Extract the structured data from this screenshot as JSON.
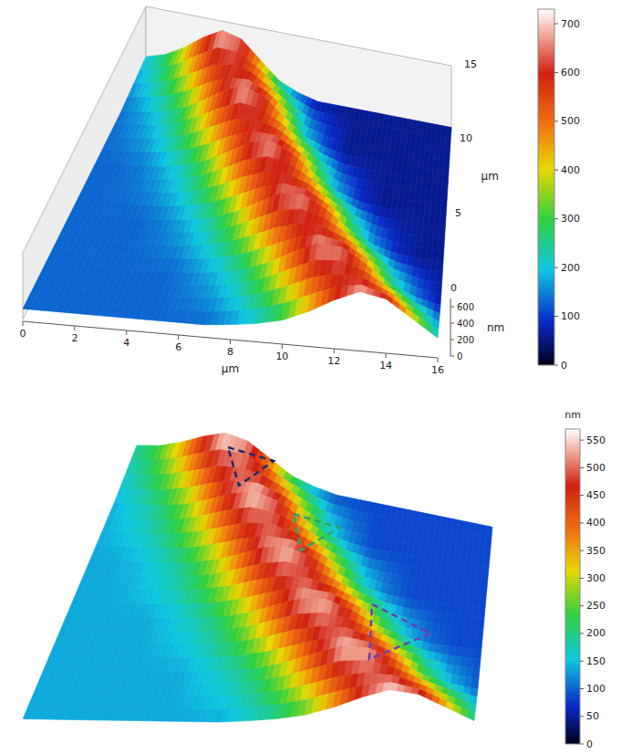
{
  "chart_data": [
    {
      "type": "surface",
      "x": [
        0,
        1,
        2,
        3,
        4,
        5,
        6,
        7,
        8,
        9,
        10,
        11,
        12,
        13,
        14,
        15,
        16
      ],
      "y": [
        0,
        3,
        6,
        9,
        12,
        15
      ],
      "z": [
        [
          130,
          130,
          130,
          130,
          130,
          130,
          130,
          130,
          160,
          200,
          270,
          400,
          570,
          700,
          640,
          430,
          220
        ],
        [
          130,
          130,
          130,
          130,
          130,
          130,
          155,
          192,
          256,
          374,
          536,
          674,
          652,
          472,
          262,
          140,
          72
        ],
        [
          130,
          130,
          130,
          130,
          148,
          184,
          242,
          348,
          502,
          648,
          664,
          514,
          304,
          160,
          84,
          60,
          60
        ],
        [
          130,
          130,
          142,
          176,
          228,
          322,
          468,
          622,
          676,
          556,
          346,
          180,
          96,
          60,
          60,
          60,
          60
        ],
        [
          136,
          168,
          214,
          296,
          434,
          596,
          688,
          598,
          388,
          200,
          108,
          60,
          60,
          60,
          60,
          60,
          60
        ],
        [
          200,
          270,
          400,
          570,
          700,
          640,
          430,
          220,
          120,
          60,
          60,
          60,
          60,
          60,
          60,
          60,
          60
        ]
      ],
      "xlim": [
        0,
        16
      ],
      "xticks": [
        0,
        2,
        4,
        6,
        8,
        10,
        12,
        14,
        16
      ],
      "ylim": [
        0,
        15
      ],
      "yticks": [
        0,
        5,
        10,
        15
      ],
      "zlim": [
        0,
        700
      ],
      "zticks": [
        0,
        200,
        400,
        600
      ],
      "x_label": "µm",
      "y_label": "µm",
      "z_label": "nm",
      "colorbar": {
        "range": [
          0,
          730
        ],
        "ticks": [
          0,
          100,
          200,
          300,
          400,
          500,
          600,
          700
        ]
      }
    },
    {
      "type": "surface",
      "x": [
        0,
        1,
        2,
        3,
        4,
        5,
        6,
        7,
        8,
        9,
        10,
        11,
        12,
        13,
        14,
        15,
        16
      ],
      "y": [
        0,
        3,
        6,
        9,
        12,
        15
      ],
      "z": [
        [
          138,
          138,
          138,
          138,
          138,
          138,
          138,
          138,
          160,
          190,
          243,
          340,
          468,
          565,
          520,
          363,
          205
        ],
        [
          138,
          138,
          138,
          138,
          138,
          138,
          156,
          184,
          232,
          321,
          442,
          546,
          529,
          394,
          237,
          145,
          94
        ],
        [
          138,
          138,
          138,
          138,
          151,
          178,
          222,
          301,
          417,
          526,
          538,
          426,
          268,
          160,
          103,
          85,
          85
        ],
        [
          138,
          138,
          147,
          172,
          211,
          282,
          391,
          507,
          547,
          457,
          300,
          175,
          112,
          85,
          85,
          85,
          85
        ],
        [
          142,
          166,
          201,
          262,
          366,
          487,
          556,
          489,
          331,
          190,
          121,
          85,
          85,
          85,
          85,
          85,
          85
        ],
        [
          190,
          243,
          340,
          468,
          565,
          520,
          363,
          205,
          130,
          85,
          85,
          85,
          85,
          85,
          85,
          85,
          85
        ]
      ],
      "xlim": [
        0,
        16
      ],
      "ylim": [
        0,
        15
      ],
      "tick_labels": false,
      "colorbar": {
        "range": [
          0,
          570
        ],
        "ticks": [
          0,
          50,
          100,
          150,
          200,
          250,
          300,
          350,
          400,
          450,
          500,
          550
        ],
        "label": "nm"
      },
      "annotations": [
        {
          "marker": "triangle",
          "line_style": "dashed",
          "color": "#1c2a6b"
        },
        {
          "marker": "triangle",
          "line_style": "dashed",
          "color": "#2aa36b"
        },
        {
          "marker": "triangle",
          "line_style": "dashed",
          "color": "#6a3fb0"
        }
      ]
    }
  ]
}
